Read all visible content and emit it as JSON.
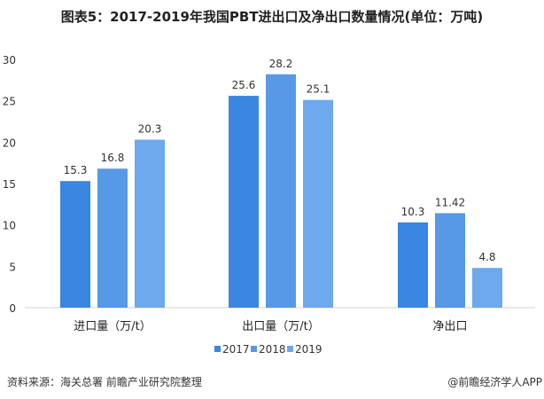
{
  "chart_data": {
    "type": "bar",
    "title": "图表5：2017-2019年我国PBT进出口及净出口数量情况(单位：万吨)",
    "categories": [
      "进口量（万/t）",
      "出口量（万/t）",
      "净出口"
    ],
    "series": [
      {
        "name": "2017",
        "values": [
          15.3,
          25.6,
          10.3
        ],
        "labels": [
          "15.3",
          "25.6",
          "10.3"
        ],
        "color": "#3a86e0"
      },
      {
        "name": "2018",
        "values": [
          16.8,
          28.2,
          11.42
        ],
        "labels": [
          "16.8",
          "28.2",
          "11.42"
        ],
        "color": "#5799e6"
      },
      {
        "name": "2019",
        "values": [
          20.3,
          25.1,
          4.8
        ],
        "labels": [
          "20.3",
          "25.1",
          "4.8"
        ],
        "color": "#6ea8ed"
      }
    ],
    "yticks": [
      "0",
      "5",
      "10",
      "15",
      "20",
      "25",
      "30"
    ],
    "ylim": [
      0,
      30
    ],
    "grid": false,
    "legend": "bottom"
  },
  "footer": {
    "source": "资料来源：海关总署 前瞻产业研究院整理",
    "credit": "@前瞻经济学人APP"
  }
}
